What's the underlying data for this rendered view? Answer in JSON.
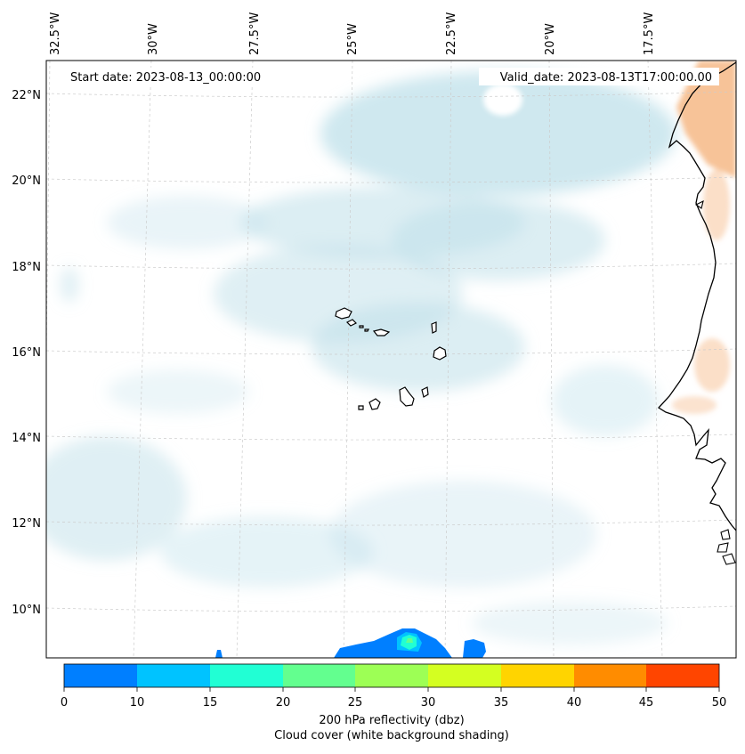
{
  "annotations": {
    "start_date": "Start date: 2023-08-13_00:00:00",
    "valid_date": "Valid_date: 2023-08-13T17:00:00.00"
  },
  "longitude_labels": [
    "32.5°W",
    "30°W",
    "27.5°W",
    "25°W",
    "22.5°W",
    "20°W",
    "17.5°W"
  ],
  "latitude_labels": [
    "22°N",
    "20°N",
    "18°N",
    "16°N",
    "14°N",
    "12°N",
    "10°N"
  ],
  "colorbar": {
    "ticks": [
      "0",
      "10",
      "15",
      "20",
      "25",
      "30",
      "35",
      "40",
      "45",
      "50"
    ],
    "colors": [
      "#007fff",
      "#00c3ff",
      "#21ffd4",
      "#63ff8f",
      "#9dff55",
      "#d4ff21",
      "#ffd400",
      "#ff8c00",
      "#ff4500"
    ],
    "label_line1": "200 hPa reflectivity (dbz)",
    "label_line2": "Cloud cover (white background shading)"
  },
  "colors": {
    "cloud": "#bfe0ea",
    "coastline": "#000000",
    "grid": "#cccccc",
    "land_heat": "#f6b886"
  }
}
